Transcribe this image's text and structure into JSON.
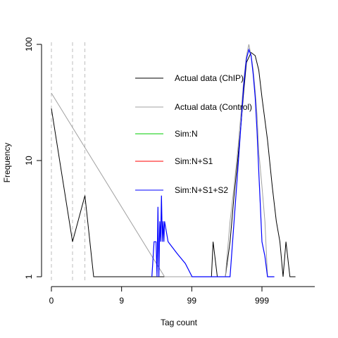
{
  "chart_data": {
    "type": "line",
    "title": "",
    "xlabel": "Tag count",
    "ylabel": "Frequency",
    "x_scale": "log10(x+1)",
    "y_scale": "log10",
    "xlim": [
      0,
      9999
    ],
    "ylim": [
      1,
      100
    ],
    "x_ticks": [
      0,
      9,
      99,
      999
    ],
    "x_tick_labels": [
      "0",
      "9",
      "99",
      "999"
    ],
    "y_ticks": [
      1,
      10,
      100
    ],
    "y_tick_labels": [
      "1",
      "10",
      "100"
    ],
    "vlines": [
      0,
      1,
      2
    ],
    "legend_position": "top-right",
    "series": [
      {
        "name": "Actual data (ChIP)",
        "color": "#000000",
        "x": [
          0,
          1,
          2,
          3,
          190,
          200,
          230,
          250,
          300,
          350,
          400,
          450,
          500,
          550,
          600,
          700,
          800,
          900,
          1000,
          1200,
          1400,
          1600,
          1800,
          2000,
          2200,
          2500,
          3000
        ],
        "y": [
          28,
          2,
          5,
          1,
          1,
          2,
          1,
          1,
          1,
          2,
          5,
          10,
          20,
          40,
          70,
          85,
          80,
          60,
          35,
          15,
          6,
          3,
          2,
          1,
          2,
          1,
          1
        ]
      },
      {
        "name": "Actual data (Control)",
        "color": "#a0a0a0",
        "x": [
          0,
          40,
          300,
          350,
          400,
          450,
          500,
          550,
          600,
          650,
          700,
          750,
          800,
          850,
          900,
          1000,
          1100,
          1200,
          1400
        ],
        "y": [
          38,
          1,
          1,
          3,
          6,
          12,
          25,
          50,
          80,
          100,
          80,
          60,
          40,
          25,
          12,
          6,
          3,
          1,
          1
        ]
      },
      {
        "name": "Sim:N",
        "color": "#00cc00",
        "x": [],
        "y": []
      },
      {
        "name": "Sim:N+S1",
        "color": "#ff0000",
        "x": [],
        "y": []
      },
      {
        "name": "Sim:N+S1+S2",
        "color": "#0000ff",
        "x": [
          26,
          28,
          30,
          31,
          32,
          33,
          34,
          35,
          36,
          37,
          38,
          39,
          40,
          45,
          60,
          80,
          100,
          350,
          400,
          450,
          500,
          550,
          600,
          650,
          700,
          750,
          800,
          850,
          900,
          950,
          1000,
          1100,
          1200,
          1300,
          1400,
          1500
        ],
        "y": [
          1,
          2,
          2,
          1,
          4,
          1,
          3,
          2,
          5,
          2,
          3,
          2,
          3,
          2,
          1.6,
          1.3,
          1,
          1,
          3,
          8,
          20,
          45,
          75,
          90,
          80,
          55,
          35,
          18,
          8,
          4,
          2,
          1.5,
          1,
          1,
          1,
          1
        ]
      }
    ]
  }
}
